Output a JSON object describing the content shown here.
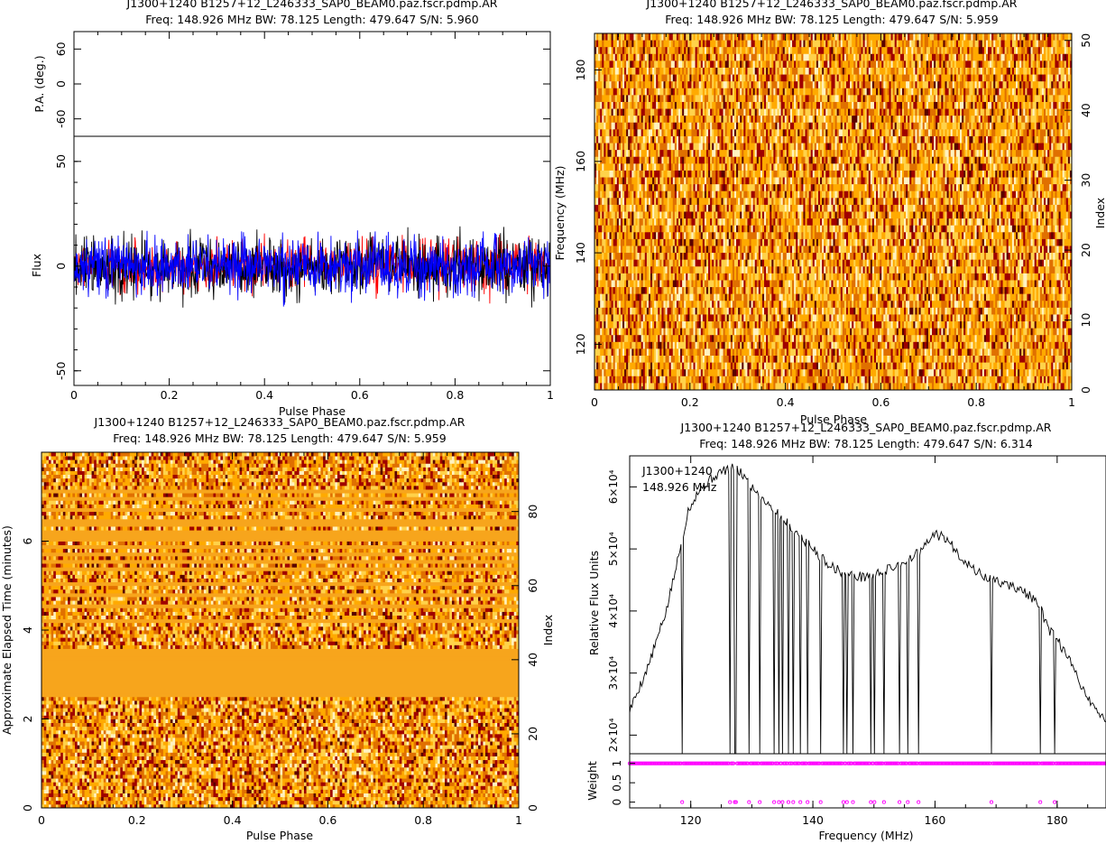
{
  "chart_data": [
    {
      "type": "line",
      "panel": "profile-polarisation",
      "title": "J1300+1240  B1257+12_L246333_SAP0_BEAM0.paz.fscr.pdmp.AR",
      "subtitle": "Freq: 148.926 MHz BW: 78.125 Length: 479.647 S/N: 5.960",
      "xlabel": "Pulse Phase",
      "xlim": [
        0,
        1
      ],
      "xticks": [
        "0",
        "0.2",
        "0.4",
        "0.6",
        "0.8",
        "1"
      ],
      "pa": {
        "ylabel": "P.A. (deg.)",
        "ylim": [
          -90,
          90
        ],
        "yticks": [
          "-60",
          "0",
          "60"
        ]
      },
      "flux": {
        "ylabel": "Flux",
        "ylim": [
          -57,
          62
        ],
        "yticks": [
          "-50",
          "0",
          "50"
        ]
      },
      "series": [
        {
          "color": "#ff0000",
          "noise_sd": 8,
          "seed": 7
        },
        {
          "color": "#000000",
          "noise_sd": 10,
          "seed": 3
        },
        {
          "color": "#0000ff",
          "noise_sd": 9,
          "seed": 11
        }
      ]
    },
    {
      "type": "heatmap",
      "panel": "frequency-phase",
      "title": "J1300+1240  B1257+12_L246333_SAP0_BEAM0.paz.fscr.pdmp.AR",
      "subtitle": "Freq: 148.926 MHz BW: 78.125 Length: 479.647 S/N: 5.959",
      "xlabel": "Pulse Phase",
      "ylabel": "Frequency (MHz)",
      "ylabel_right": "Index",
      "xlim": [
        0,
        1
      ],
      "ylim": [
        110,
        188
      ],
      "ylim_right": [
        0,
        51
      ],
      "xticks": [
        "0",
        "0.2",
        "0.4",
        "0.6",
        "0.8",
        "1"
      ],
      "yticks": [
        "120",
        "140",
        "160",
        "180"
      ],
      "yticks_right": [
        "0",
        "10",
        "20",
        "30",
        "40",
        "50"
      ],
      "colormap": [
        "#fff2c0",
        "#ffd24a",
        "#ffaa00",
        "#e07000",
        "#a00000",
        "#5a0000"
      ]
    },
    {
      "type": "heatmap",
      "panel": "time-phase",
      "title": "J1300+1240  B1257+12_L246333_SAP0_BEAM0.paz.fscr.pdmp.AR",
      "subtitle": "Freq: 148.926 MHz BW: 78.125 Length: 479.647 S/N: 5.959",
      "xlabel": "Pulse Phase",
      "ylabel": "Approximate Elapsed Time (minutes)",
      "ylabel_right": "Index",
      "xlim": [
        0,
        1
      ],
      "ylim": [
        0,
        8.0
      ],
      "ylim_right": [
        0,
        96
      ],
      "xticks": [
        "0",
        "0.2",
        "0.4",
        "0.6",
        "0.8",
        "1"
      ],
      "yticks": [
        "0",
        "2",
        "4",
        "6"
      ],
      "yticks_right": [
        "0",
        "20",
        "40",
        "60",
        "80"
      ],
      "flagged_subints": [
        30,
        31,
        32,
        33,
        34,
        35,
        36,
        37,
        38,
        39,
        40,
        41,
        42,
        50,
        54,
        57,
        60,
        64,
        66,
        68,
        70,
        72,
        73,
        74,
        76,
        77,
        80,
        83,
        85
      ],
      "flag_color": "#f7a51c"
    },
    {
      "type": "line",
      "panel": "bandpass",
      "title": "J1300+1240  B1257+12_L246333_SAP0_BEAM0.paz.fscr.pdmp.AR",
      "subtitle": "Freq: 148.926 MHz BW: 78.125 Length: 479.647 S/N: 6.314",
      "annotation": [
        "J1300+1240",
        "148.926 MHz"
      ],
      "xlabel": "Frequency (MHz)",
      "xlim": [
        110,
        188
      ],
      "xticks": [
        "120",
        "140",
        "160",
        "180"
      ],
      "flux": {
        "ylabel": "Relative Flux Units",
        "ylim": [
          17000,
          65000
        ],
        "yticks": [
          "2×10⁴",
          "3×10⁴",
          "4×10⁴",
          "5×10⁴",
          "6×10⁴"
        ],
        "ytick_values": [
          20000,
          30000,
          40000,
          50000,
          60000
        ],
        "shape": [
          [
            110,
            24000
          ],
          [
            113,
            31000
          ],
          [
            116,
            40000
          ],
          [
            118.5,
            51000
          ],
          [
            119.5,
            56000
          ],
          [
            121,
            59000
          ],
          [
            123,
            61000
          ],
          [
            125,
            62500
          ],
          [
            127,
            63000
          ],
          [
            128.5,
            62000
          ],
          [
            130,
            60000
          ],
          [
            133,
            57000
          ],
          [
            136,
            54000
          ],
          [
            139,
            51000
          ],
          [
            142,
            48000
          ],
          [
            145,
            46000
          ],
          [
            148,
            45500
          ],
          [
            150,
            45800
          ],
          [
            153,
            47000
          ],
          [
            156,
            48500
          ],
          [
            158,
            50000
          ],
          [
            160,
            52500
          ],
          [
            162,
            51500
          ],
          [
            164,
            49000
          ],
          [
            166,
            47000
          ],
          [
            168,
            45500
          ],
          [
            171,
            44500
          ],
          [
            174,
            43500
          ],
          [
            176,
            42000
          ],
          [
            177.5,
            40000
          ],
          [
            178.5,
            37000
          ],
          [
            180,
            35500
          ],
          [
            182,
            32000
          ],
          [
            185,
            26000
          ],
          [
            188,
            22000
          ]
        ],
        "dropouts": [
          118.6,
          126.4,
          127.3,
          129.5,
          131.4,
          133.6,
          134.4,
          135.1,
          136.0,
          136.8,
          137.9,
          139.2,
          141.3,
          145.0,
          145.6,
          146.5,
          149.4,
          150.0,
          151.6,
          154.2,
          155.6,
          157.4,
          169.3,
          177.3,
          179.5
        ]
      },
      "weight": {
        "ylabel": "Weight",
        "ylim": [
          -0.15,
          1.25
        ],
        "yticks": [
          "0",
          "0.5",
          "1"
        ],
        "marker_color": "#ff00ff"
      }
    }
  ]
}
